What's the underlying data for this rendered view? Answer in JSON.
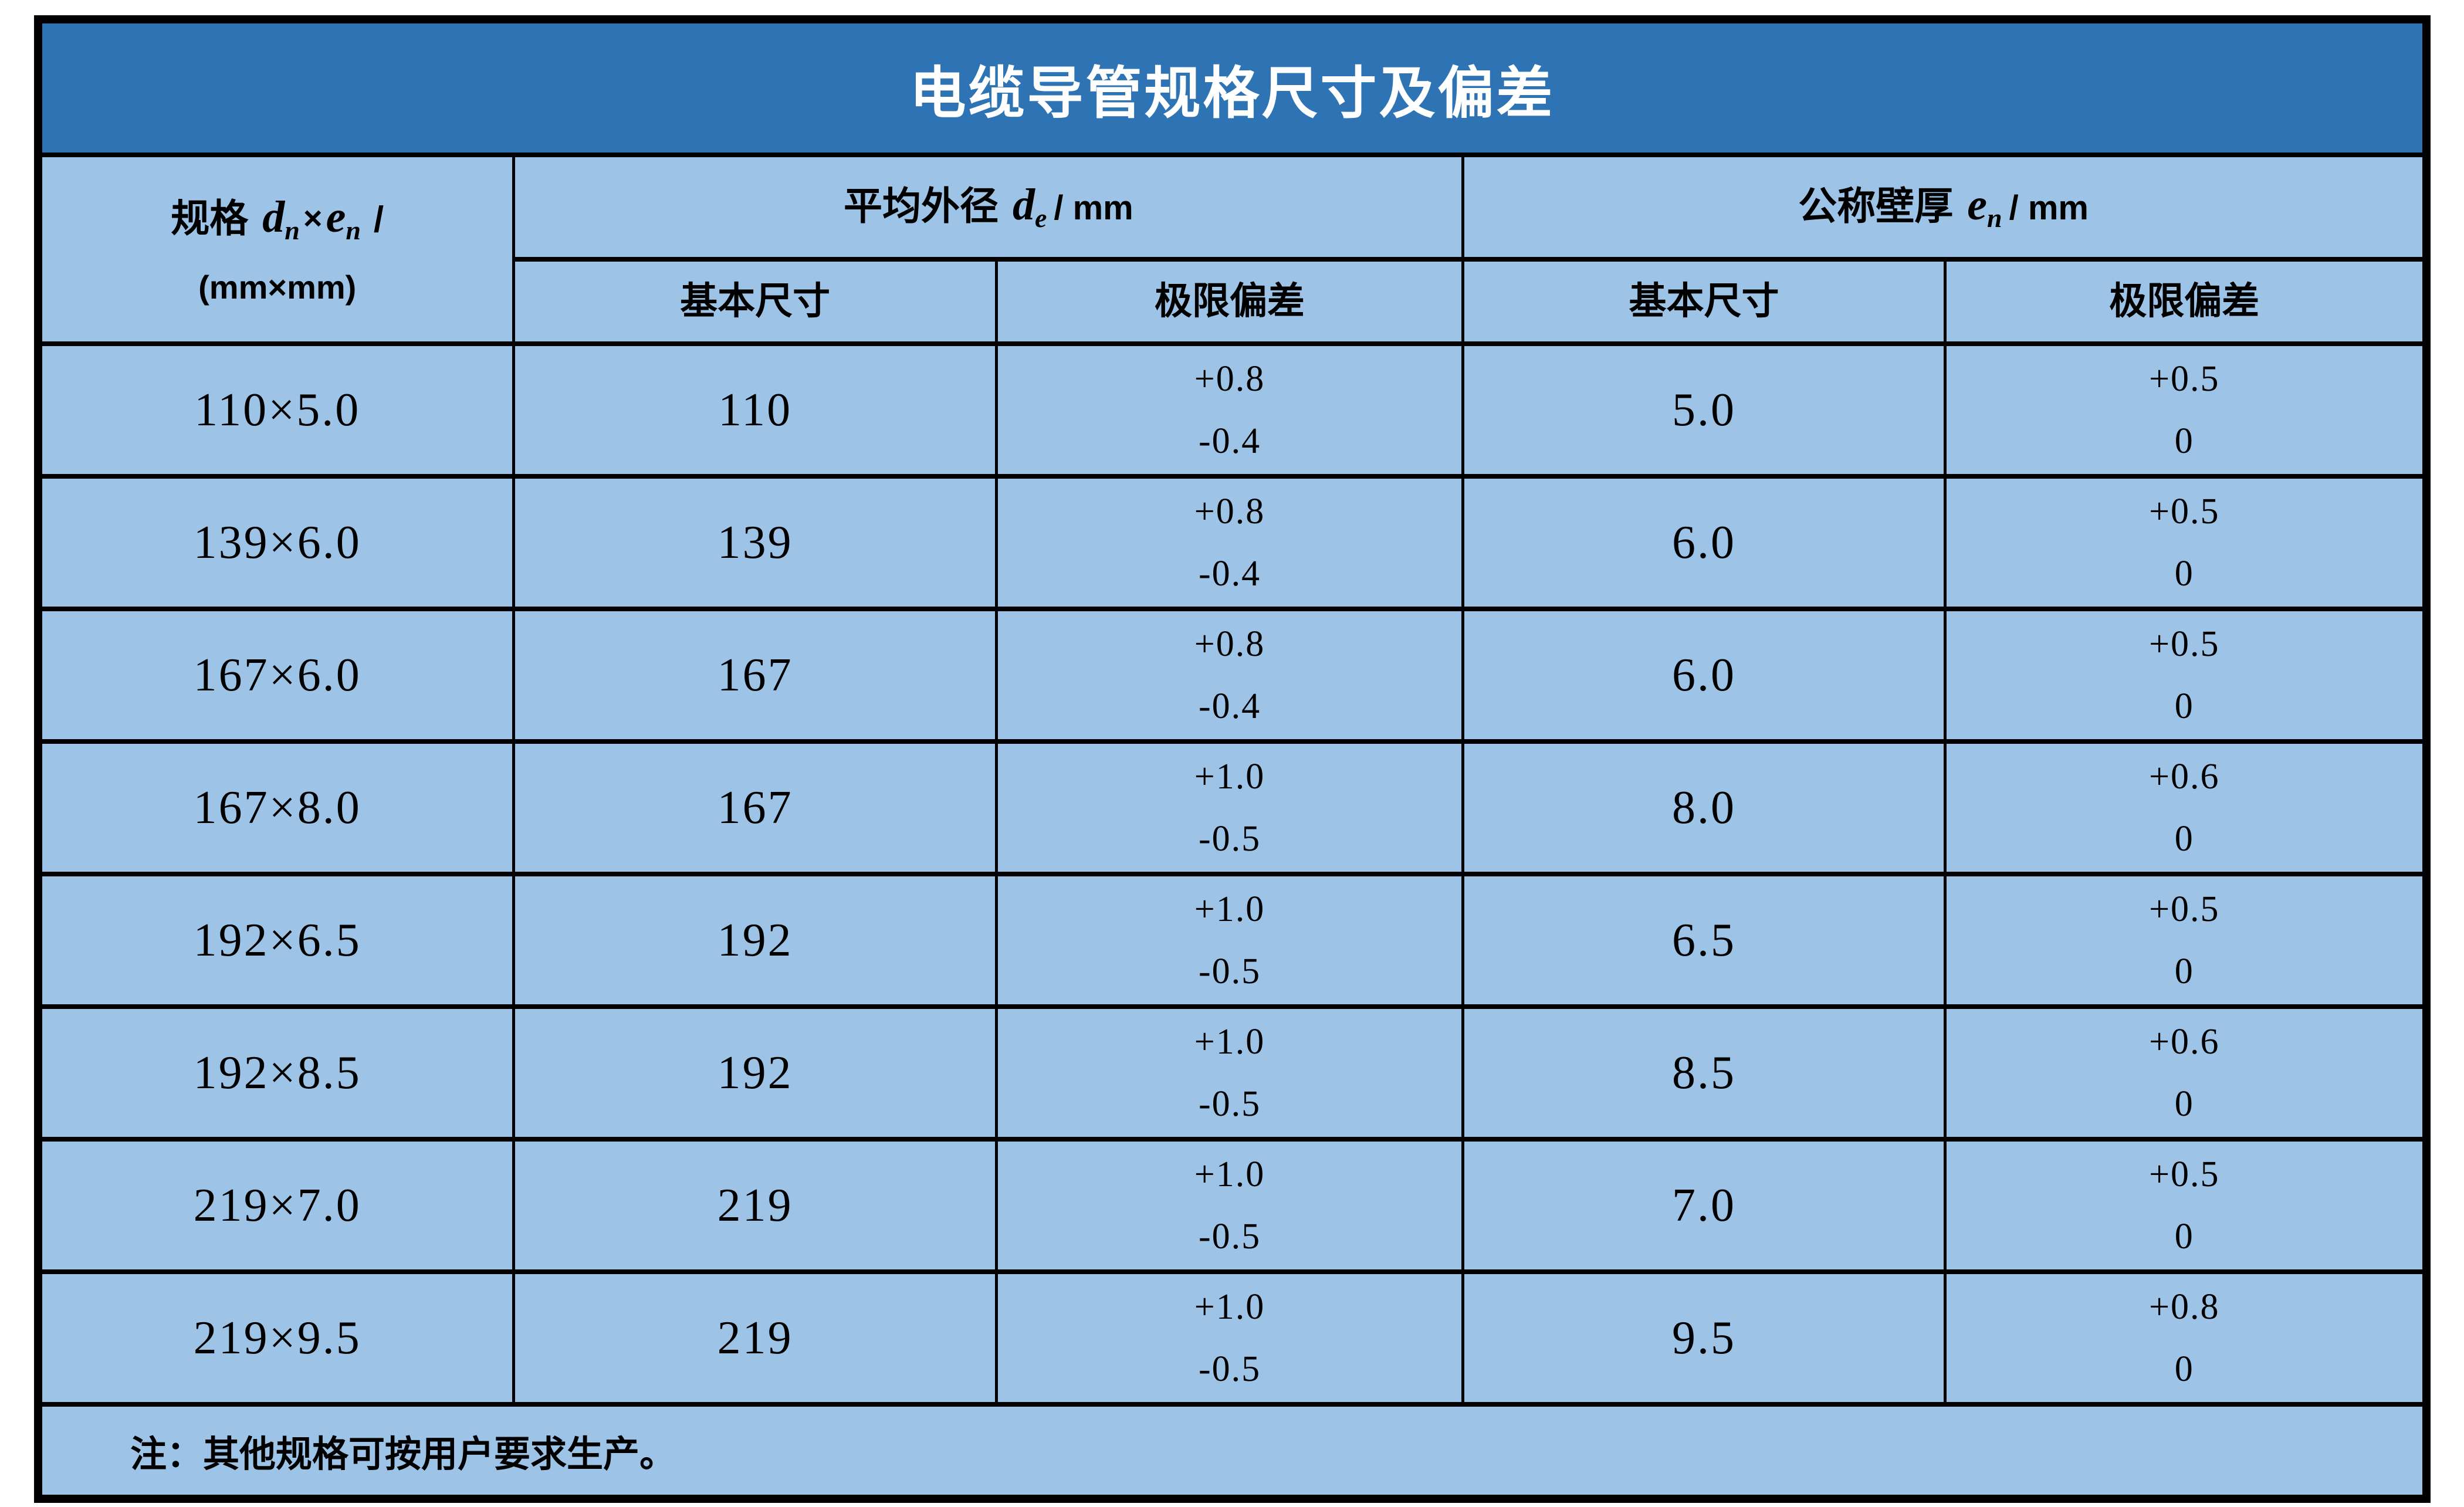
{
  "title": "电缆导管规格尺寸及偏差",
  "header": {
    "spec": {
      "label": "规格",
      "d": "d",
      "d_sub": "n",
      "times": "×",
      "e": "e",
      "e_sub": "n",
      "slash": "/",
      "unit_line": "(mm×mm)"
    },
    "outer_diameter": {
      "label": "平均外径",
      "sym": "d",
      "sym_sub": "e",
      "unit": "/ mm",
      "basic": "基本尺寸",
      "deviation": "极限偏差"
    },
    "wall_thickness": {
      "label": "公称壁厚",
      "sym": "e",
      "sym_sub": "n",
      "unit": "/ mm",
      "basic": "基本尺寸",
      "deviation": "极限偏差"
    }
  },
  "rows": [
    {
      "spec": "110×5.0",
      "od_basic": "110",
      "od_dev_plus": "+0.8",
      "od_dev_minus": "-0.4",
      "wt_basic": "5.0",
      "wt_dev_plus": "+0.5",
      "wt_dev_minus": "0"
    },
    {
      "spec": "139×6.0",
      "od_basic": "139",
      "od_dev_plus": "+0.8",
      "od_dev_minus": "-0.4",
      "wt_basic": "6.0",
      "wt_dev_plus": "+0.5",
      "wt_dev_minus": "0"
    },
    {
      "spec": "167×6.0",
      "od_basic": "167",
      "od_dev_plus": "+0.8",
      "od_dev_minus": "-0.4",
      "wt_basic": "6.0",
      "wt_dev_plus": "+0.5",
      "wt_dev_minus": "0"
    },
    {
      "spec": "167×8.0",
      "od_basic": "167",
      "od_dev_plus": "+1.0",
      "od_dev_minus": "-0.5",
      "wt_basic": "8.0",
      "wt_dev_plus": "+0.6",
      "wt_dev_minus": "0"
    },
    {
      "spec": "192×6.5",
      "od_basic": "192",
      "od_dev_plus": "+1.0",
      "od_dev_minus": "-0.5",
      "wt_basic": "6.5",
      "wt_dev_plus": "+0.5",
      "wt_dev_minus": "0"
    },
    {
      "spec": "192×8.5",
      "od_basic": "192",
      "od_dev_plus": "+1.0",
      "od_dev_minus": "-0.5",
      "wt_basic": "8.5",
      "wt_dev_plus": "+0.6",
      "wt_dev_minus": "0"
    },
    {
      "spec": "219×7.0",
      "od_basic": "219",
      "od_dev_plus": "+1.0",
      "od_dev_minus": "-0.5",
      "wt_basic": "7.0",
      "wt_dev_plus": "+0.5",
      "wt_dev_minus": "0"
    },
    {
      "spec": "219×9.5",
      "od_basic": "219",
      "od_dev_plus": "+1.0",
      "od_dev_minus": "-0.5",
      "wt_basic": "9.5",
      "wt_dev_plus": "+0.8",
      "wt_dev_minus": "0"
    }
  ],
  "note": "注：其他规格可按用户要求生产。",
  "colors": {
    "title_bg": "#2E74B5",
    "title_text": "#FFFFFF",
    "cell_bg": "#9DC3E6",
    "border": "#000000",
    "body_text": "#000000"
  }
}
